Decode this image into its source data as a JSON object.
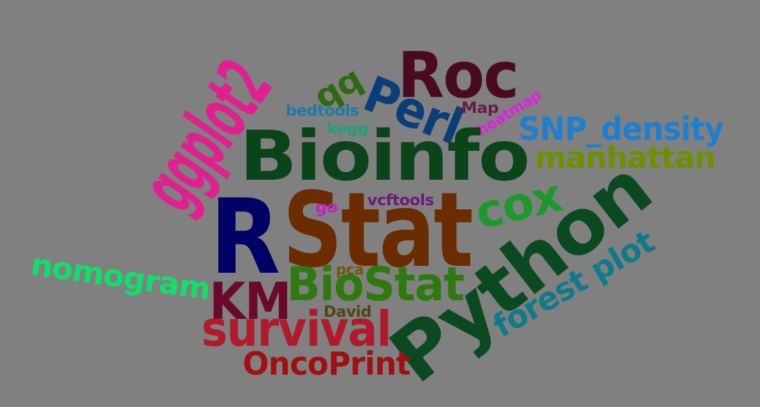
{
  "background_color": "#808080",
  "words": [
    {
      "text": "ggplot2",
      "color": "#e0208f"
    },
    {
      "text": "Roc",
      "color": "#4a0a20"
    },
    {
      "text": "qq",
      "color": "#2e6a10"
    },
    {
      "text": "Perl",
      "color": "#0b3d7a"
    },
    {
      "text": "bedtools",
      "color": "#1c7aa8"
    },
    {
      "text": "Map",
      "color": "#6a1a4a"
    },
    {
      "text": "heatmap",
      "color": "#e020e0"
    },
    {
      "text": "kegg",
      "color": "#20a07a"
    },
    {
      "text": "SNP_density",
      "color": "#1e7fd0"
    },
    {
      "text": "Bioinfo",
      "color": "#0b4418"
    },
    {
      "text": "manhattan",
      "color": "#6e8f00"
    },
    {
      "text": "cox",
      "color": "#1a9a2a"
    },
    {
      "text": "R",
      "color": "#000066"
    },
    {
      "text": "Stat",
      "color": "#6b2c00"
    },
    {
      "text": "vcftools",
      "color": "#6a1a7a"
    },
    {
      "text": "go",
      "color": "#c020c0"
    },
    {
      "text": "Python",
      "color": "#0b4a20"
    },
    {
      "text": "nomogram",
      "color": "#10e06a"
    },
    {
      "text": "pca",
      "color": "#6a5a10"
    },
    {
      "text": "BioStat",
      "color": "#2e7a10"
    },
    {
      "text": "KM",
      "color": "#6a0a2a"
    },
    {
      "text": "forest plot",
      "color": "#107a8a"
    },
    {
      "text": "David",
      "color": "#4a4a10"
    },
    {
      "text": "survival",
      "color": "#b01a2a"
    },
    {
      "text": "OncoPrint",
      "color": "#a01010"
    }
  ]
}
